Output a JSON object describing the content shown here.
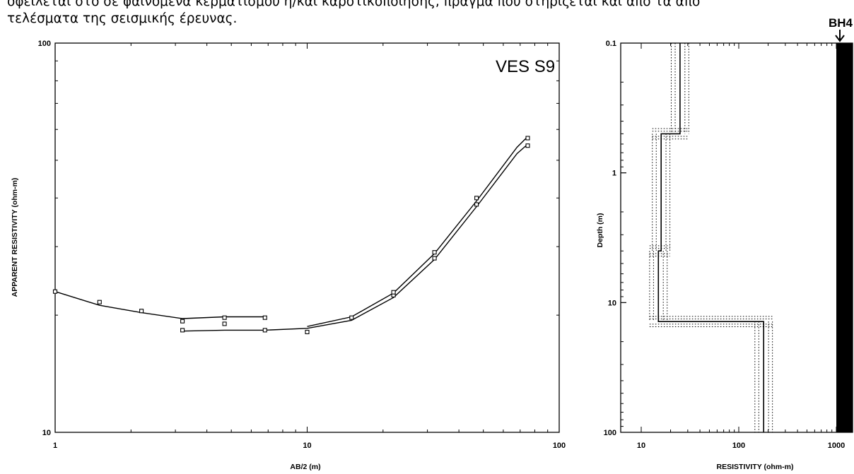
{
  "doc": {
    "line1": "οφείλεται στο σε φαινόμενα κερματισμού ή/και καρστικοποίησης, πράγμα που στηρίζεται και από τα απο",
    "line2": "τελέσματα της σεισμικής έρευνας.",
    "borehole_label": "BH4"
  },
  "chart_data": [
    {
      "type": "line",
      "title": "VES S9",
      "xlabel": "AB/2 (m)",
      "ylabel": "APPARENT RESISTIVITY (ohm-m)",
      "xscale": "log",
      "yscale": "log",
      "xlim": [
        1,
        100
      ],
      "ylim": [
        10,
        100
      ],
      "xticks": [
        "1",
        "10",
        "100"
      ],
      "yticks": [
        "10",
        "100"
      ],
      "grid": false,
      "series": [
        {
          "style": "line",
          "x": [
            1,
            1.5,
            2.2,
            3.2,
            4.7,
            6.8
          ],
          "y": [
            23,
            21.2,
            20.3,
            19.6,
            19.8,
            19.8
          ]
        },
        {
          "style": "line",
          "x": [
            3.2,
            4.7,
            6.8,
            10,
            15,
            22,
            32,
            47,
            68,
            75
          ],
          "y": [
            18.2,
            18.3,
            18.3,
            18.5,
            19.4,
            22.2,
            27.8,
            38,
            52,
            55
          ]
        },
        {
          "style": "line",
          "x": [
            10,
            15,
            22,
            32,
            47,
            68,
            75
          ],
          "y": [
            18.7,
            19.8,
            22.8,
            28.8,
            39.3,
            54,
            57.5
          ]
        },
        {
          "style": "points",
          "x": [
            1,
            1.5,
            2.2,
            3.2,
            3.2,
            4.7,
            4.7,
            6.8,
            6.8,
            10,
            15,
            22,
            22,
            32,
            32,
            47,
            47,
            75,
            75
          ],
          "y": [
            23,
            21.6,
            20.5,
            19.3,
            18.3,
            19.7,
            19,
            19.7,
            18.3,
            18.1,
            19.7,
            22.5,
            22.9,
            28,
            29,
            38.5,
            40,
            54.5,
            57
          ]
        }
      ]
    },
    {
      "type": "line",
      "xlabel": "RESISTIVITY (ohm-m)",
      "ylabel": "Depth (m)",
      "xscale": "log",
      "yscale": "log",
      "y_inverted": true,
      "xlim": [
        10,
        1200
      ],
      "ylim": [
        0.1,
        100
      ],
      "xticks": [
        "10",
        "100",
        "1000"
      ],
      "yticks": [
        "0.1",
        "1",
        "10",
        "100"
      ],
      "grid": false,
      "layers": [
        {
          "resistivity": 25,
          "top": 0.1,
          "bottom": 0.5
        },
        {
          "resistivity": 16,
          "top": 0.5,
          "bottom": 4
        },
        {
          "resistivity": 15,
          "top": 4,
          "bottom": 14
        },
        {
          "resistivity": 180,
          "top": 14,
          "bottom": 100
        }
      ],
      "borehole": {
        "resistivity_from": 1000,
        "top": 0.1,
        "bottom": 100,
        "color": "#000000"
      }
    }
  ]
}
